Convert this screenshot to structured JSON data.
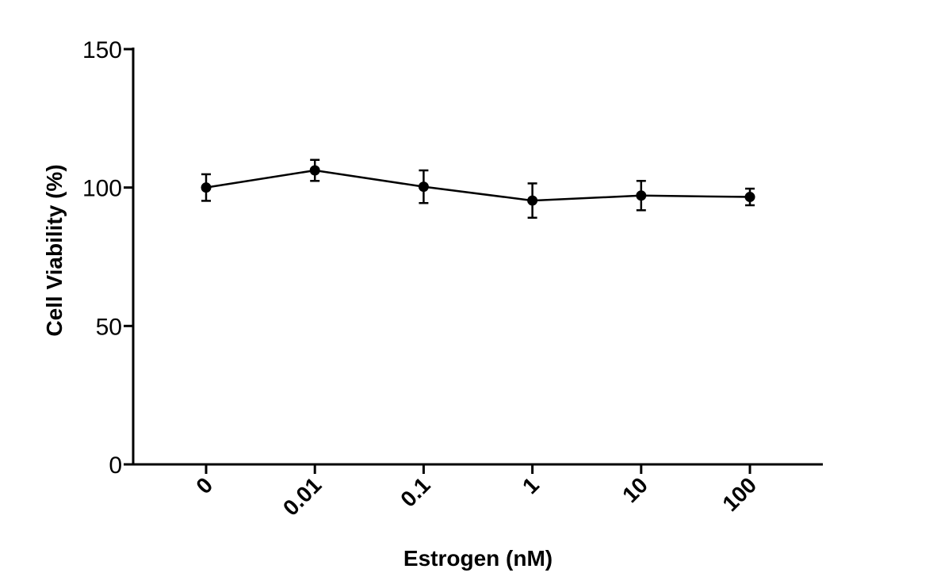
{
  "chart_data": {
    "type": "line",
    "title": "",
    "xlabel": "Estrogen (nM)",
    "ylabel": "Cell Viability (%)",
    "categories": [
      "0",
      "0.01",
      "0.1",
      "1",
      "10",
      "100"
    ],
    "ylim": [
      0,
      150
    ],
    "yticks": [
      "0",
      "50",
      "100",
      "150"
    ],
    "grid": false,
    "series": [
      {
        "values": [
          100,
          106.2,
          100.3,
          95.3,
          97.1,
          96.6
        ],
        "error": [
          4.8,
          3.8,
          5.9,
          6.2,
          5.3,
          3.0
        ]
      }
    ],
    "colors": {
      "line": "#000000",
      "marker": "#000000"
    }
  }
}
